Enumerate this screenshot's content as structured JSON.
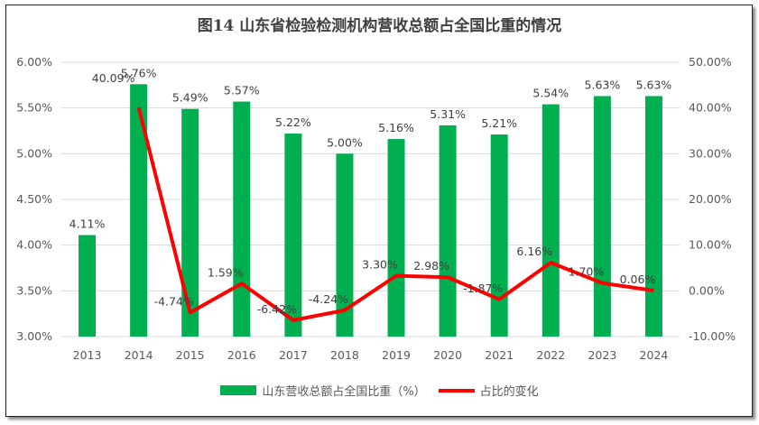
{
  "chart_data": {
    "type": "bar+line",
    "title": "图14   山东省检验检测机构营收总额占全国比重的情况",
    "categories": [
      "2013",
      "2014",
      "2015",
      "2016",
      "2017",
      "2018",
      "2019",
      "2020",
      "2021",
      "2022",
      "2023",
      "2024"
    ],
    "series": [
      {
        "name": "山东营收总额占全国比重（%）",
        "type": "bar",
        "axis": "left",
        "color": "#00b050",
        "values": [
          4.11,
          5.76,
          5.49,
          5.57,
          5.22,
          5.0,
          5.16,
          5.31,
          5.21,
          5.54,
          5.63,
          5.63
        ],
        "labels": [
          "4.11%",
          "5.76%",
          "5.49%",
          "5.57%",
          "5.22%",
          "5.00%",
          "5.16%",
          "5.31%",
          "5.21%",
          "5.54%",
          "5.63%",
          "5.63%"
        ]
      },
      {
        "name": "占比的变化",
        "type": "line",
        "axis": "right",
        "color": "#ff0000",
        "values": [
          null,
          40.09,
          -4.74,
          1.59,
          -6.42,
          -4.24,
          3.3,
          2.98,
          -1.87,
          6.16,
          1.7,
          0.06
        ],
        "labels": [
          null,
          "40.09%",
          "-4.74%",
          "1.59%",
          "-6.42%",
          "-4.24%",
          "3.30%",
          "2.98%",
          "-1.87%",
          "6.16%",
          "1.70%",
          "0.06%"
        ]
      }
    ],
    "y_left": {
      "range": [
        3.0,
        6.0
      ],
      "ticks": [
        "3.00%",
        "3.50%",
        "4.00%",
        "4.50%",
        "5.00%",
        "5.50%",
        "6.00%"
      ]
    },
    "y_right": {
      "range": [
        -10,
        50
      ],
      "ticks": [
        "-10.00%",
        "0.00%",
        "10.00%",
        "20.00%",
        "30.00%",
        "40.00%",
        "50.00%"
      ]
    },
    "grid": true,
    "legend": "bottom"
  }
}
